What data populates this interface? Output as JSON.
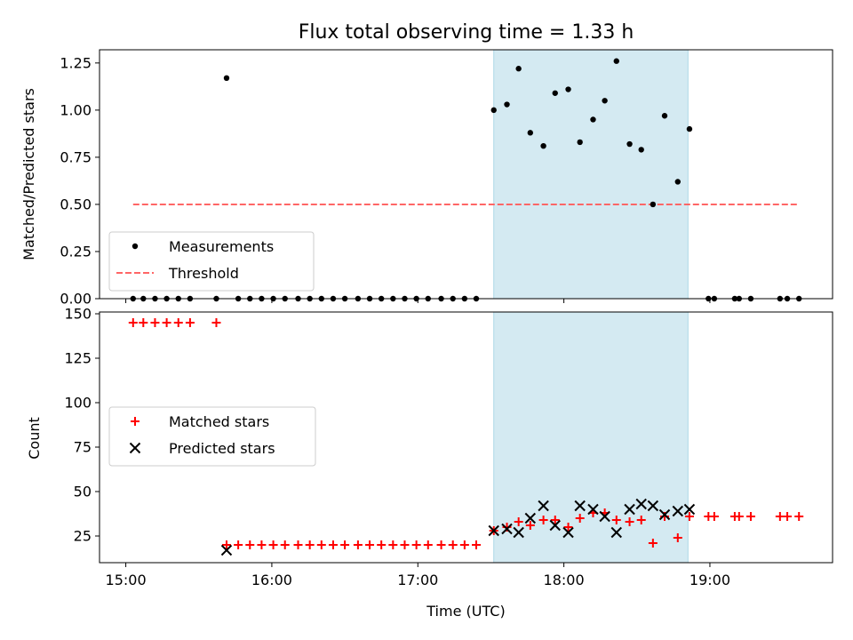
{
  "title": "Flux total observing time = 1.33 h",
  "colors": {
    "measurement": "#000000",
    "threshold": "#ff6666",
    "matched": "#ff0000",
    "predicted": "#000000",
    "highlight": "#add8e6"
  },
  "chart_data": [
    {
      "type": "scatter",
      "title": "Flux total observing time = 1.33 h",
      "ylabel": "Matched/Predicted stars",
      "xlabel": "",
      "xlim": [
        14.82,
        19.84
      ],
      "ylim": [
        0,
        1.32
      ],
      "x_tick_labels": [
        "15:00",
        "16:00",
        "17:00",
        "18:00",
        "19:00"
      ],
      "yticks": [
        0.0,
        0.25,
        0.5,
        0.75,
        1.0,
        1.25
      ],
      "y_tick_labels": [
        "0.00",
        "0.25",
        "0.50",
        "0.75",
        "1.00",
        "1.25"
      ],
      "highlight_span": [
        17.52,
        18.85
      ],
      "legend": {
        "position": "lower-left",
        "items": [
          {
            "label": "Measurements",
            "marker": "dot"
          },
          {
            "label": "Threshold",
            "marker": "dash"
          }
        ]
      },
      "series": [
        {
          "name": "Measurements",
          "points": [
            [
              15.05,
              0
            ],
            [
              15.12,
              0
            ],
            [
              15.2,
              0
            ],
            [
              15.28,
              0
            ],
            [
              15.36,
              0
            ],
            [
              15.44,
              0
            ],
            [
              15.62,
              0
            ],
            [
              15.69,
              1.17
            ],
            [
              15.77,
              0
            ],
            [
              15.85,
              0
            ],
            [
              15.93,
              0
            ],
            [
              16.01,
              0
            ],
            [
              16.09,
              0
            ],
            [
              16.18,
              0
            ],
            [
              16.26,
              0
            ],
            [
              16.34,
              0
            ],
            [
              16.42,
              0
            ],
            [
              16.5,
              0
            ],
            [
              16.59,
              0
            ],
            [
              16.67,
              0
            ],
            [
              16.75,
              0
            ],
            [
              16.83,
              0
            ],
            [
              16.91,
              0
            ],
            [
              16.99,
              0
            ],
            [
              17.07,
              0
            ],
            [
              17.16,
              0
            ],
            [
              17.24,
              0
            ],
            [
              17.32,
              0
            ],
            [
              17.4,
              0
            ],
            [
              17.52,
              1.0
            ],
            [
              17.61,
              1.03
            ],
            [
              17.69,
              1.22
            ],
            [
              17.77,
              0.88
            ],
            [
              17.86,
              0.81
            ],
            [
              17.94,
              1.09
            ],
            [
              18.03,
              1.11
            ],
            [
              18.11,
              0.83
            ],
            [
              18.2,
              0.95
            ],
            [
              18.28,
              1.05
            ],
            [
              18.36,
              1.26
            ],
            [
              18.45,
              0.82
            ],
            [
              18.53,
              0.79
            ],
            [
              18.61,
              0.5
            ],
            [
              18.69,
              0.97
            ],
            [
              18.78,
              0.62
            ],
            [
              18.86,
              0.9
            ],
            [
              18.99,
              0
            ],
            [
              19.03,
              0
            ],
            [
              19.17,
              0
            ],
            [
              19.2,
              0
            ],
            [
              19.28,
              0
            ],
            [
              19.48,
              0
            ],
            [
              19.53,
              0
            ],
            [
              19.61,
              0
            ]
          ]
        },
        {
          "name": "Threshold",
          "points": [
            [
              15.05,
              0.5
            ],
            [
              19.61,
              0.5
            ]
          ]
        }
      ]
    },
    {
      "type": "scatter",
      "title": "",
      "ylabel": "Count",
      "xlabel": "Time (UTC)",
      "xlim": [
        14.82,
        19.84
      ],
      "ylim": [
        10,
        151
      ],
      "x_tick_labels": [
        "15:00",
        "16:00",
        "17:00",
        "18:00",
        "19:00"
      ],
      "yticks": [
        25,
        50,
        75,
        100,
        125,
        150
      ],
      "y_tick_labels": [
        "25",
        "50",
        "75",
        "100",
        "125",
        "150"
      ],
      "highlight_span": [
        17.52,
        18.85
      ],
      "legend": {
        "position": "center-left",
        "items": [
          {
            "label": "Matched stars",
            "marker": "plus"
          },
          {
            "label": "Predicted stars",
            "marker": "x"
          }
        ]
      },
      "series": [
        {
          "name": "Matched stars",
          "points": [
            [
              15.05,
              145
            ],
            [
              15.12,
              145
            ],
            [
              15.2,
              145
            ],
            [
              15.28,
              145
            ],
            [
              15.36,
              145
            ],
            [
              15.44,
              145
            ],
            [
              15.62,
              145
            ],
            [
              15.69,
              20
            ],
            [
              15.77,
              20
            ],
            [
              15.85,
              20
            ],
            [
              15.93,
              20
            ],
            [
              16.01,
              20
            ],
            [
              16.09,
              20
            ],
            [
              16.18,
              20
            ],
            [
              16.26,
              20
            ],
            [
              16.34,
              20
            ],
            [
              16.42,
              20
            ],
            [
              16.5,
              20
            ],
            [
              16.59,
              20
            ],
            [
              16.67,
              20
            ],
            [
              16.75,
              20
            ],
            [
              16.83,
              20
            ],
            [
              16.91,
              20
            ],
            [
              16.99,
              20
            ],
            [
              17.07,
              20
            ],
            [
              17.16,
              20
            ],
            [
              17.24,
              20
            ],
            [
              17.32,
              20
            ],
            [
              17.4,
              20
            ],
            [
              17.52,
              28
            ],
            [
              17.61,
              30
            ],
            [
              17.69,
              33
            ],
            [
              17.77,
              31
            ],
            [
              17.86,
              34
            ],
            [
              17.94,
              34
            ],
            [
              18.03,
              30
            ],
            [
              18.11,
              35
            ],
            [
              18.2,
              38
            ],
            [
              18.28,
              38
            ],
            [
              18.36,
              34
            ],
            [
              18.45,
              33
            ],
            [
              18.53,
              34
            ],
            [
              18.61,
              21
            ],
            [
              18.69,
              36
            ],
            [
              18.78,
              24
            ],
            [
              18.86,
              36
            ],
            [
              18.99,
              36
            ],
            [
              19.03,
              36
            ],
            [
              19.17,
              36
            ],
            [
              19.2,
              36
            ],
            [
              19.28,
              36
            ],
            [
              19.48,
              36
            ],
            [
              19.53,
              36
            ],
            [
              19.61,
              36
            ]
          ]
        },
        {
          "name": "Predicted stars",
          "points": [
            [
              15.69,
              17
            ],
            [
              17.52,
              28
            ],
            [
              17.61,
              29
            ],
            [
              17.69,
              27
            ],
            [
              17.77,
              35
            ],
            [
              17.86,
              42
            ],
            [
              17.94,
              31
            ],
            [
              18.03,
              27
            ],
            [
              18.11,
              42
            ],
            [
              18.2,
              40
            ],
            [
              18.28,
              36
            ],
            [
              18.36,
              27
            ],
            [
              18.45,
              40
            ],
            [
              18.53,
              43
            ],
            [
              18.61,
              42
            ],
            [
              18.69,
              37
            ],
            [
              18.78,
              39
            ],
            [
              18.86,
              40
            ]
          ]
        }
      ]
    }
  ]
}
